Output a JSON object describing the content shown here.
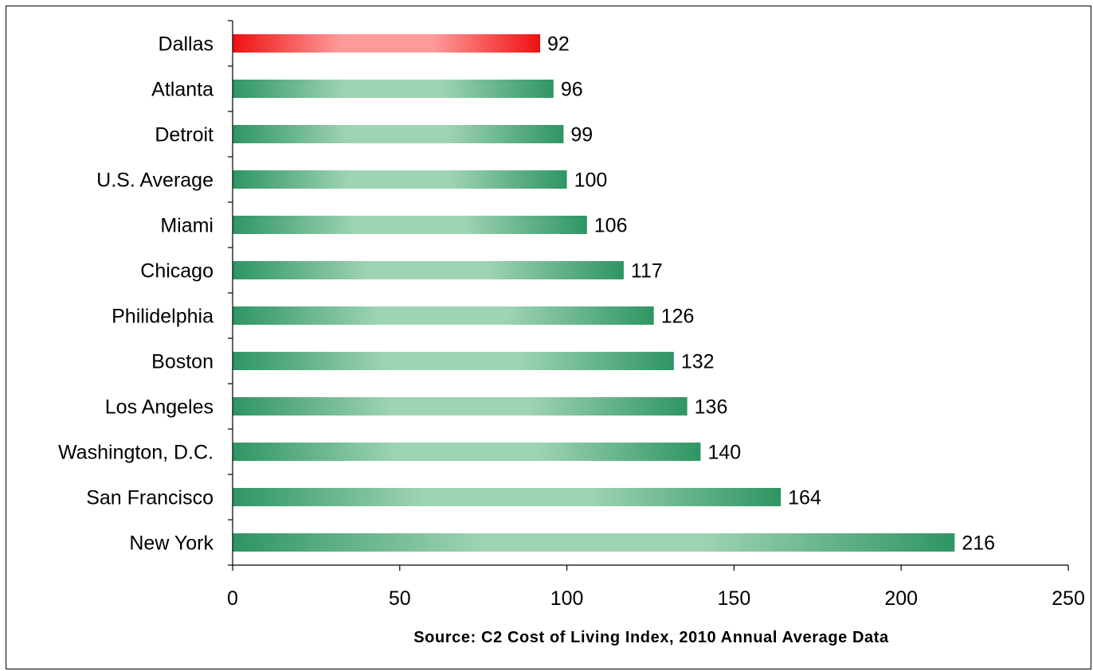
{
  "chart_data": {
    "type": "bar",
    "orientation": "horizontal",
    "categories": [
      "Dallas",
      "Atlanta",
      "Detroit",
      "U.S. Average",
      "Miami",
      "Chicago",
      "Philidelphia",
      "Boston",
      "Los Angeles",
      "Washington, D.C.",
      "San Francisco",
      "New York"
    ],
    "values": [
      92,
      96,
      99,
      100,
      106,
      117,
      126,
      132,
      136,
      140,
      164,
      216
    ],
    "highlight_index": 0,
    "xlabel": "Source: C2 Cost of Living Index, 2010 Annual Average Data",
    "xlim": [
      0,
      250
    ],
    "xticks": [
      0,
      50,
      100,
      150,
      200,
      250
    ],
    "grid": false,
    "legend": "none",
    "colors": {
      "highlight_edge": "#ee1111",
      "highlight_mid": "#ff9a9a",
      "bar_edge": "#2e9563",
      "bar_mid": "#9fd4b3"
    }
  }
}
